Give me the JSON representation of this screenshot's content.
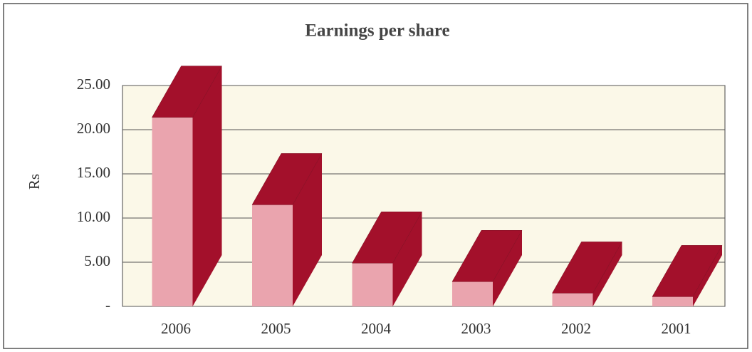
{
  "chart_data": {
    "type": "bar3d",
    "title": "Earnings per share",
    "y_label": "Rs",
    "categories": [
      "2006",
      "2005",
      "2004",
      "2003",
      "2002",
      "2001"
    ],
    "values": [
      21.4,
      11.5,
      4.9,
      2.8,
      1.5,
      1.1
    ],
    "color": "#eaa4ae",
    "side_color": "#a3102b",
    "ylim": [
      0,
      25
    ],
    "yticks": [
      {
        "value": 0,
        "label": "-"
      },
      {
        "value": 5,
        "label": "5.00"
      },
      {
        "value": 10,
        "label": "10.00"
      },
      {
        "value": 15,
        "label": "15.00"
      },
      {
        "value": 20,
        "label": "20.00"
      },
      {
        "value": 25,
        "label": "25.00"
      }
    ],
    "grid": true
  }
}
